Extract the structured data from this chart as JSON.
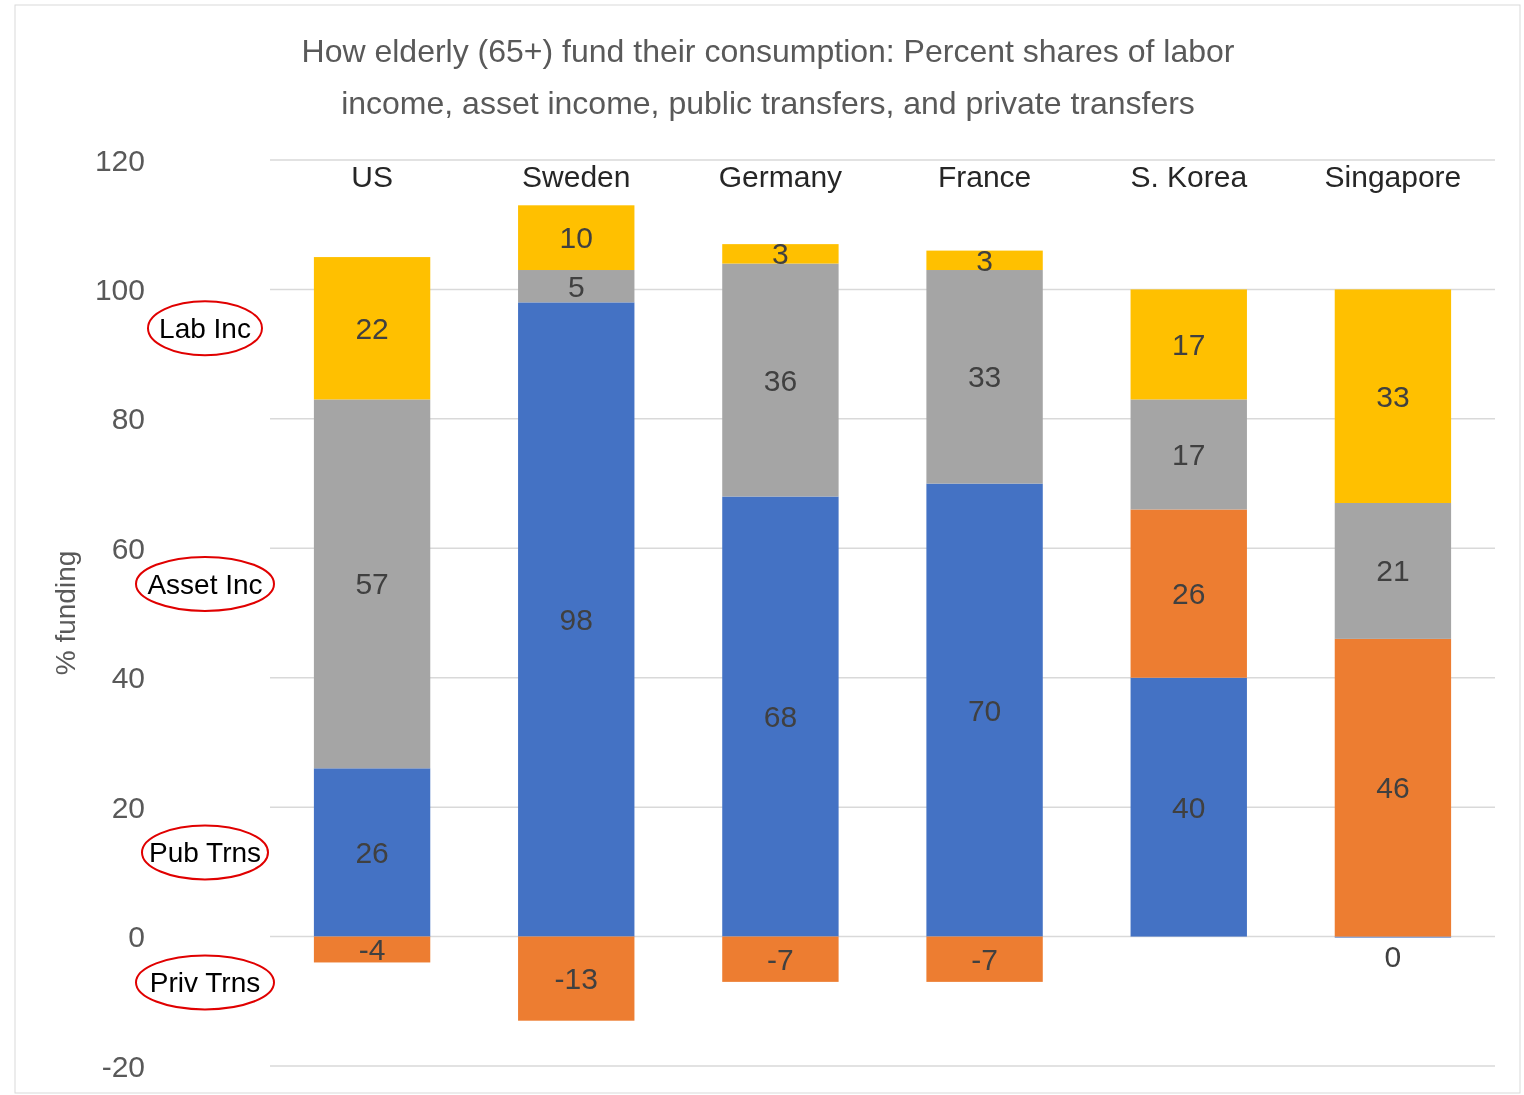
{
  "chart_data": {
    "type": "bar",
    "title": "How elderly (65+) fund their consumption: Percent shares of labor income, asset income, public transfers, and private transfers",
    "ylabel": "% funding",
    "categories": [
      "US",
      "Sweden",
      "Germany",
      "France",
      "S. Korea",
      "Singapore"
    ],
    "stacked": true,
    "series": [
      {
        "name": "Pub Trns",
        "color": "#4472c4",
        "values": [
          26,
          98,
          68,
          70,
          40,
          0
        ]
      },
      {
        "name": "Priv Trns",
        "color": "#ed7d31",
        "values": [
          -4,
          -13,
          -7,
          -7,
          26,
          46
        ]
      },
      {
        "name": "Asset Inc",
        "color": "#a5a5a5",
        "values": [
          57,
          5,
          36,
          33,
          17,
          21
        ]
      },
      {
        "name": "Lab Inc",
        "color": "#ffc000",
        "values": [
          22,
          10,
          3,
          3,
          17,
          33
        ]
      }
    ],
    "ylim": [
      -20,
      120
    ],
    "yticks": [
      -20,
      0,
      20,
      40,
      60,
      80,
      100,
      120
    ],
    "grid": "y",
    "legend": "left",
    "data_labels": true
  }
}
